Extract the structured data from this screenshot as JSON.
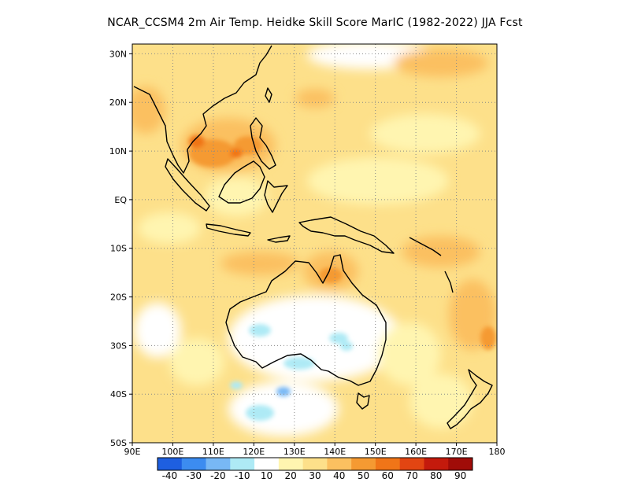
{
  "title": "NCAR_CCSM4  2m Air Temp. Heidke Skill Score MarIC (1982-2022) JJA Fcst",
  "lon_labels": [
    "90E",
    "100E",
    "110E",
    "120E",
    "130E",
    "140E",
    "150E",
    "160E",
    "170E",
    "180"
  ],
  "lat_labels": [
    "30N",
    "20N",
    "10N",
    "EQ",
    "10S",
    "20S",
    "30S",
    "40S",
    "50S"
  ],
  "lon_range": [
    90,
    180
  ],
  "lat_range": [
    -50,
    32
  ],
  "colorbar": {
    "labels": [
      "-40",
      "-30",
      "-20",
      "-10",
      "10",
      "20",
      "30",
      "40",
      "50",
      "60",
      "70",
      "80",
      "90"
    ],
    "colors": [
      "#1e5fe0",
      "#3c8cf0",
      "#78b8f5",
      "#aeeaf5",
      "#ffffff",
      "#fff5b0",
      "#fde08a",
      "#fbc060",
      "#f59a32",
      "#f07518",
      "#e24512",
      "#c41a0c",
      "#a00c08"
    ]
  },
  "colors": {
    "land_outline": "#000000",
    "grid": "#888888"
  }
}
